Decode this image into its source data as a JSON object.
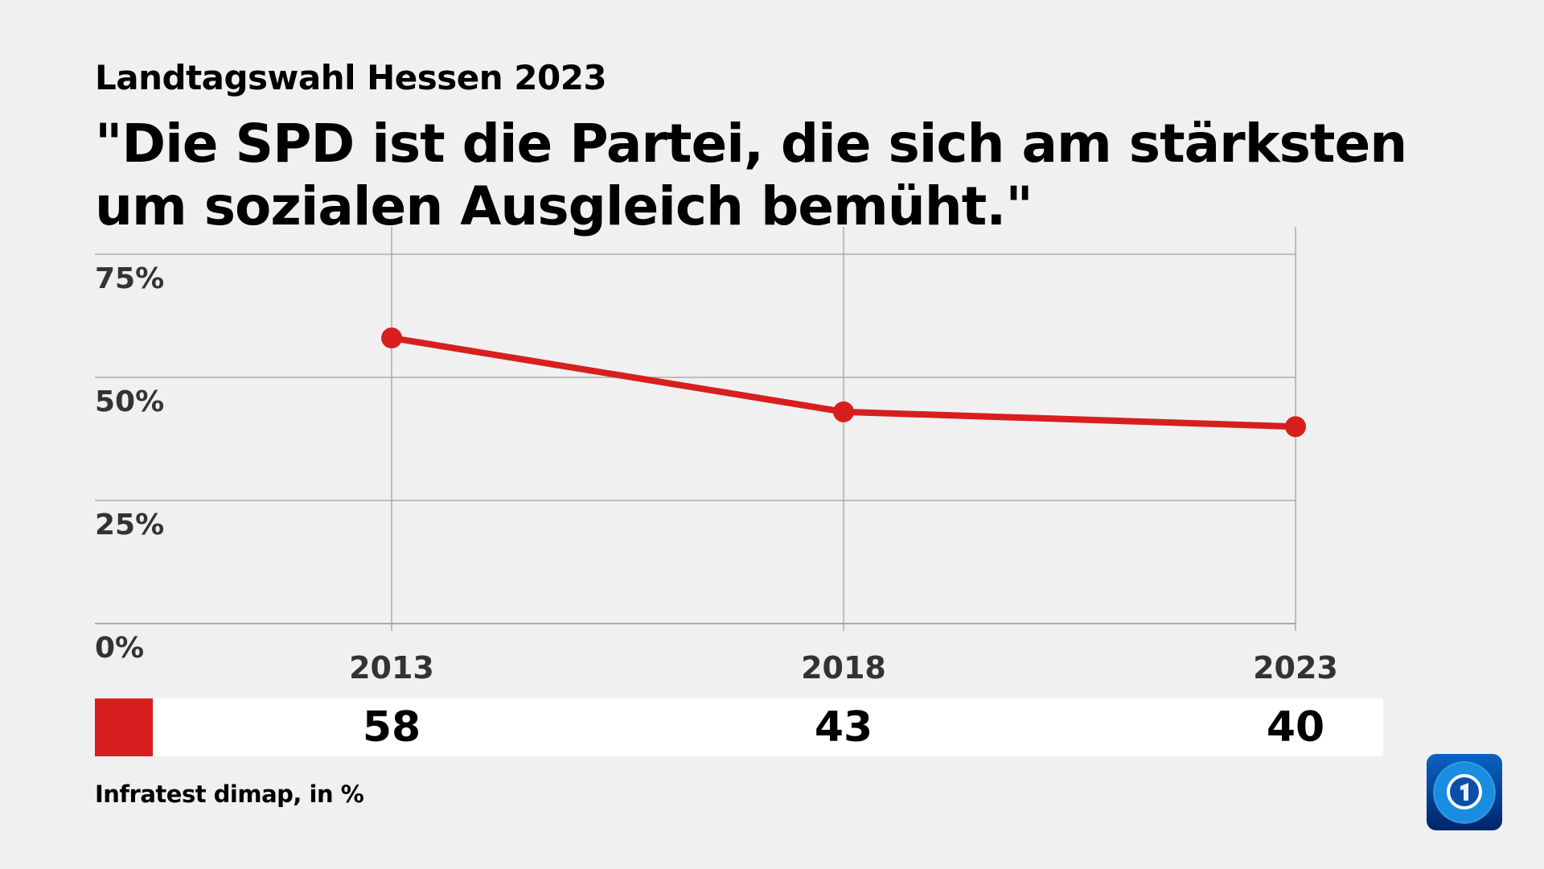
{
  "header": {
    "kicker": "Landtagswahl Hessen 2023",
    "title": "\"Die SPD ist die Partei, die sich am stärksten um sozialen Ausgleich bemüht.\""
  },
  "chart_data": {
    "type": "line",
    "title": "\"Die SPD ist die Partei, die sich am stärksten um sozialen Ausgleich bemüht.\"",
    "categories": [
      "2013",
      "2018",
      "2023"
    ],
    "series": [
      {
        "values": [
          58,
          43,
          40
        ],
        "color": "#d71f1f"
      }
    ],
    "ylim": [
      0,
      75
    ],
    "yticks": [
      0,
      25,
      50,
      75
    ],
    "ytick_labels": [
      "0%",
      "25%",
      "50%",
      "75%"
    ],
    "grid": true,
    "value_labels": [
      "58",
      "43",
      "40"
    ]
  },
  "footer": {
    "source": "Infratest dimap, in %",
    "logo": "tagesschau-logo-icon"
  }
}
